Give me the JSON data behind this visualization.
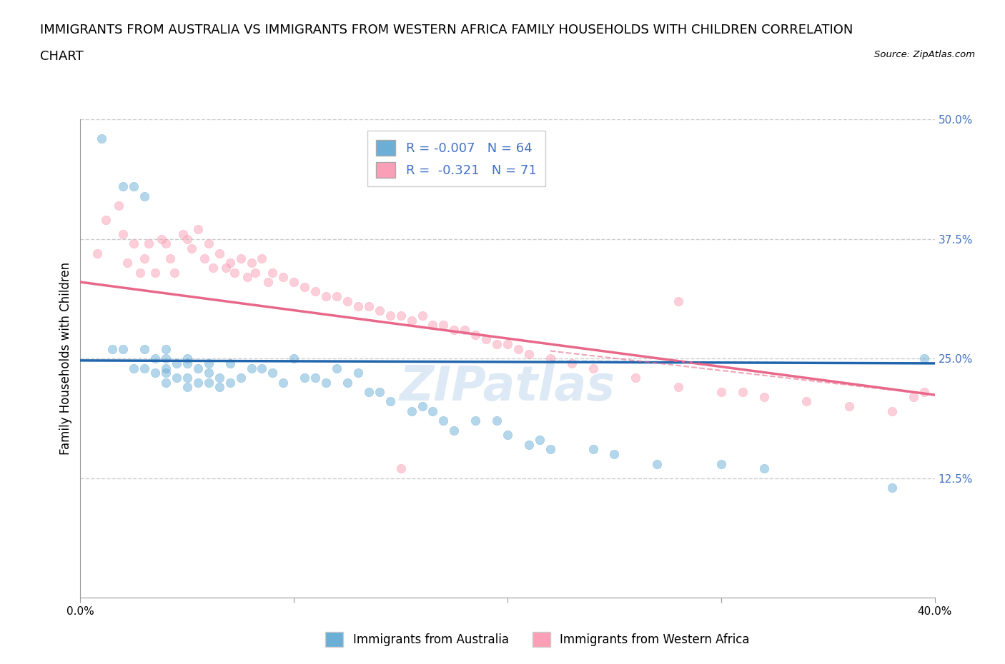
{
  "title_line1": "IMMIGRANTS FROM AUSTRALIA VS IMMIGRANTS FROM WESTERN AFRICA FAMILY HOUSEHOLDS WITH CHILDREN CORRELATION",
  "title_line2": "CHART",
  "source": "Source: ZipAtlas.com",
  "ylabel": "Family Households with Children",
  "xlim": [
    0.0,
    0.4
  ],
  "ylim": [
    0.0,
    0.5
  ],
  "xticks": [
    0.0,
    0.1,
    0.2,
    0.3,
    0.4
  ],
  "xtick_labels": [
    "0.0%",
    "",
    "",
    "",
    "40.0%"
  ],
  "yticks": [
    0.0,
    0.125,
    0.25,
    0.375,
    0.5
  ],
  "ytick_labels": [
    "",
    "12.5%",
    "25.0%",
    "37.5%",
    "50.0%"
  ],
  "hlines": [
    0.125,
    0.25,
    0.375,
    0.5
  ],
  "australia_R": -0.007,
  "australia_N": 64,
  "western_africa_R": -0.321,
  "western_africa_N": 71,
  "australia_color": "#6baed6",
  "western_africa_color": "#fa9fb5",
  "australia_line_color": "#2166ac",
  "western_africa_line_color": "#e8688a",
  "legend_label_australia": "Immigrants from Australia",
  "legend_label_western_africa": "Immigrants from Western Africa",
  "australia_scatter_x": [
    0.01,
    0.015,
    0.02,
    0.02,
    0.025,
    0.025,
    0.03,
    0.03,
    0.03,
    0.035,
    0.035,
    0.04,
    0.04,
    0.04,
    0.04,
    0.04,
    0.045,
    0.045,
    0.05,
    0.05,
    0.05,
    0.05,
    0.055,
    0.055,
    0.06,
    0.06,
    0.06,
    0.065,
    0.065,
    0.07,
    0.07,
    0.075,
    0.08,
    0.085,
    0.09,
    0.095,
    0.1,
    0.105,
    0.11,
    0.115,
    0.12,
    0.125,
    0.13,
    0.135,
    0.14,
    0.145,
    0.155,
    0.16,
    0.165,
    0.17,
    0.175,
    0.185,
    0.195,
    0.2,
    0.21,
    0.215,
    0.22,
    0.24,
    0.25,
    0.27,
    0.3,
    0.32,
    0.38,
    0.395
  ],
  "australia_scatter_y": [
    0.48,
    0.26,
    0.43,
    0.26,
    0.43,
    0.24,
    0.42,
    0.26,
    0.24,
    0.25,
    0.235,
    0.26,
    0.25,
    0.24,
    0.235,
    0.225,
    0.245,
    0.23,
    0.25,
    0.245,
    0.23,
    0.22,
    0.24,
    0.225,
    0.245,
    0.235,
    0.225,
    0.23,
    0.22,
    0.245,
    0.225,
    0.23,
    0.24,
    0.24,
    0.235,
    0.225,
    0.25,
    0.23,
    0.23,
    0.225,
    0.24,
    0.225,
    0.235,
    0.215,
    0.215,
    0.205,
    0.195,
    0.2,
    0.195,
    0.185,
    0.175,
    0.185,
    0.185,
    0.17,
    0.16,
    0.165,
    0.155,
    0.155,
    0.15,
    0.14,
    0.14,
    0.135,
    0.115,
    0.25
  ],
  "western_africa_scatter_x": [
    0.008,
    0.012,
    0.018,
    0.02,
    0.022,
    0.025,
    0.028,
    0.03,
    0.032,
    0.035,
    0.038,
    0.04,
    0.042,
    0.044,
    0.048,
    0.05,
    0.052,
    0.055,
    0.058,
    0.06,
    0.062,
    0.065,
    0.068,
    0.07,
    0.072,
    0.075,
    0.078,
    0.08,
    0.082,
    0.085,
    0.088,
    0.09,
    0.095,
    0.1,
    0.105,
    0.11,
    0.115,
    0.12,
    0.125,
    0.13,
    0.135,
    0.14,
    0.145,
    0.15,
    0.155,
    0.16,
    0.165,
    0.17,
    0.175,
    0.18,
    0.185,
    0.19,
    0.195,
    0.2,
    0.205,
    0.21,
    0.22,
    0.23,
    0.24,
    0.26,
    0.28,
    0.3,
    0.31,
    0.32,
    0.34,
    0.36,
    0.38,
    0.39,
    0.395,
    0.28,
    0.15
  ],
  "western_africa_scatter_y": [
    0.36,
    0.395,
    0.41,
    0.38,
    0.35,
    0.37,
    0.34,
    0.355,
    0.37,
    0.34,
    0.375,
    0.37,
    0.355,
    0.34,
    0.38,
    0.375,
    0.365,
    0.385,
    0.355,
    0.37,
    0.345,
    0.36,
    0.345,
    0.35,
    0.34,
    0.355,
    0.335,
    0.35,
    0.34,
    0.355,
    0.33,
    0.34,
    0.335,
    0.33,
    0.325,
    0.32,
    0.315,
    0.315,
    0.31,
    0.305,
    0.305,
    0.3,
    0.295,
    0.295,
    0.29,
    0.295,
    0.285,
    0.285,
    0.28,
    0.28,
    0.275,
    0.27,
    0.265,
    0.265,
    0.26,
    0.255,
    0.25,
    0.245,
    0.24,
    0.23,
    0.22,
    0.215,
    0.215,
    0.21,
    0.205,
    0.2,
    0.195,
    0.21,
    0.215,
    0.31,
    0.135
  ],
  "aus_line_x": [
    0.0,
    0.4
  ],
  "aus_line_y": [
    0.248,
    0.245
  ],
  "waf_line_x": [
    0.0,
    0.4
  ],
  "waf_line_y": [
    0.33,
    0.212
  ],
  "watermark": "ZIPatlas",
  "background_color": "#ffffff",
  "grid_color": "#cccccc",
  "title_fontsize": 13,
  "axis_label_fontsize": 12,
  "tick_fontsize": 11,
  "legend_fontsize": 12,
  "scatter_size": 80,
  "scatter_alpha": 0.5,
  "line_width": 2.5
}
